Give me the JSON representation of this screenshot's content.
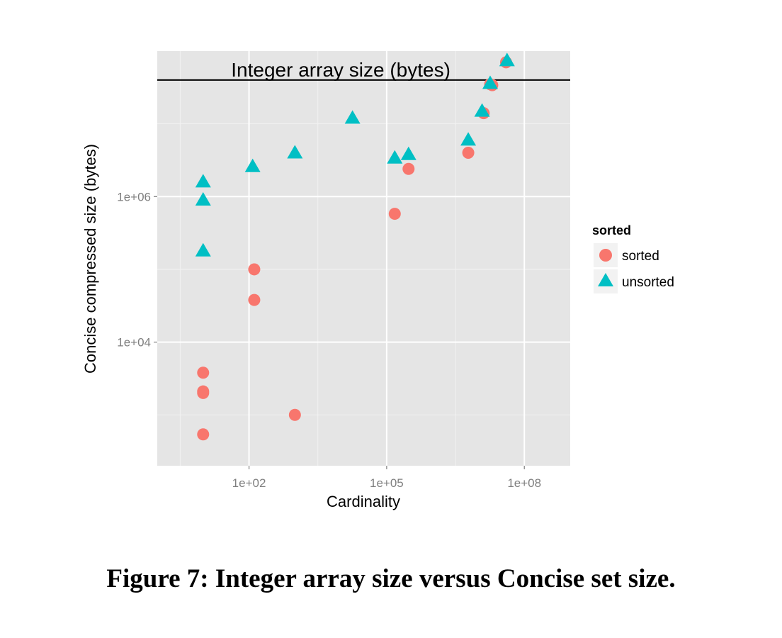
{
  "caption": "Figure 7: Integer array size versus Concise set size.",
  "chart_data": {
    "type": "scatter",
    "xlabel": "Cardinality",
    "ylabel": "Concise compressed size (bytes)",
    "x_scale": "log10",
    "y_scale": "log10",
    "xlim": [
      1,
      1000000000
    ],
    "ylim": [
      200,
      100000000
    ],
    "x_ticks": [
      {
        "value": 100,
        "label": "1e+02"
      },
      {
        "value": 100000,
        "label": "1e+05"
      },
      {
        "value": 100000000,
        "label": "1e+08"
      }
    ],
    "y_ticks": [
      {
        "value": 10000,
        "label": "1e+04"
      },
      {
        "value": 1000000,
        "label": "1e+06"
      }
    ],
    "grid": true,
    "legend": {
      "title": "sorted",
      "position": "right"
    },
    "reference_line": {
      "y": 40000000,
      "label": "Integer array size (bytes)"
    },
    "series": [
      {
        "name": "sorted",
        "color": "#F8766D",
        "marker": "circle",
        "points": [
          [
            10,
            540
          ],
          [
            10,
            2000
          ],
          [
            10,
            2100
          ],
          [
            10,
            3800
          ],
          [
            130,
            38000
          ],
          [
            130,
            100000
          ],
          [
            1000,
            1000
          ],
          [
            150000,
            580000
          ],
          [
            300000,
            2400000
          ],
          [
            6000000,
            4000000
          ],
          [
            13000000,
            14000000
          ],
          [
            18000000,
            35000000
          ],
          [
            20000000,
            34000000
          ],
          [
            40000000,
            70000000
          ]
        ]
      },
      {
        "name": "unsorted",
        "color": "#00BFC4",
        "marker": "triangle",
        "points": [
          [
            10,
            180000
          ],
          [
            10,
            900000
          ],
          [
            10,
            1600000
          ],
          [
            120,
            2600000
          ],
          [
            1000,
            4000000
          ],
          [
            18000,
            12000000
          ],
          [
            150000,
            3400000
          ],
          [
            300000,
            3800000
          ],
          [
            6000000,
            6000000
          ],
          [
            12000000,
            15000000
          ],
          [
            18000000,
            36000000
          ],
          [
            42000000,
            74000000
          ]
        ]
      }
    ]
  }
}
